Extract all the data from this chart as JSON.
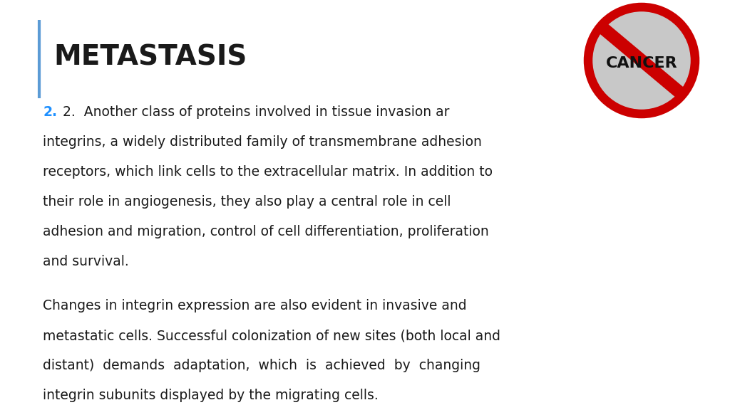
{
  "background_color": "#ffffff",
  "title": "METASTASIS",
  "title_color": "#1a1a1a",
  "title_fontsize": 28,
  "accent_line_color": "#5b9bd5",
  "number_color": "#1e90ff",
  "body_fontsize": 13.5,
  "body_color": "#1a1a1a",
  "para1_lines": [
    "2.  Another class of proteins involved in tissue invasion ar",
    "integrins, a widely distributed family of transmembrane adhesion",
    "receptors, which link cells to the extracellular matrix. In addition to",
    "their role in angiogenesis, they also play a central role in cell",
    "adhesion and migration, control of cell differentiation, proliferation",
    "and survival."
  ],
  "para2_lines": [
    "Changes in integrin expression are also evident in invasive and",
    "metastatic cells. Successful colonization of new sites (both local and",
    "distant)  demands  adaptation,  which  is  achieved  by  changing",
    "integrin subunits displayed by the migrating cells."
  ]
}
